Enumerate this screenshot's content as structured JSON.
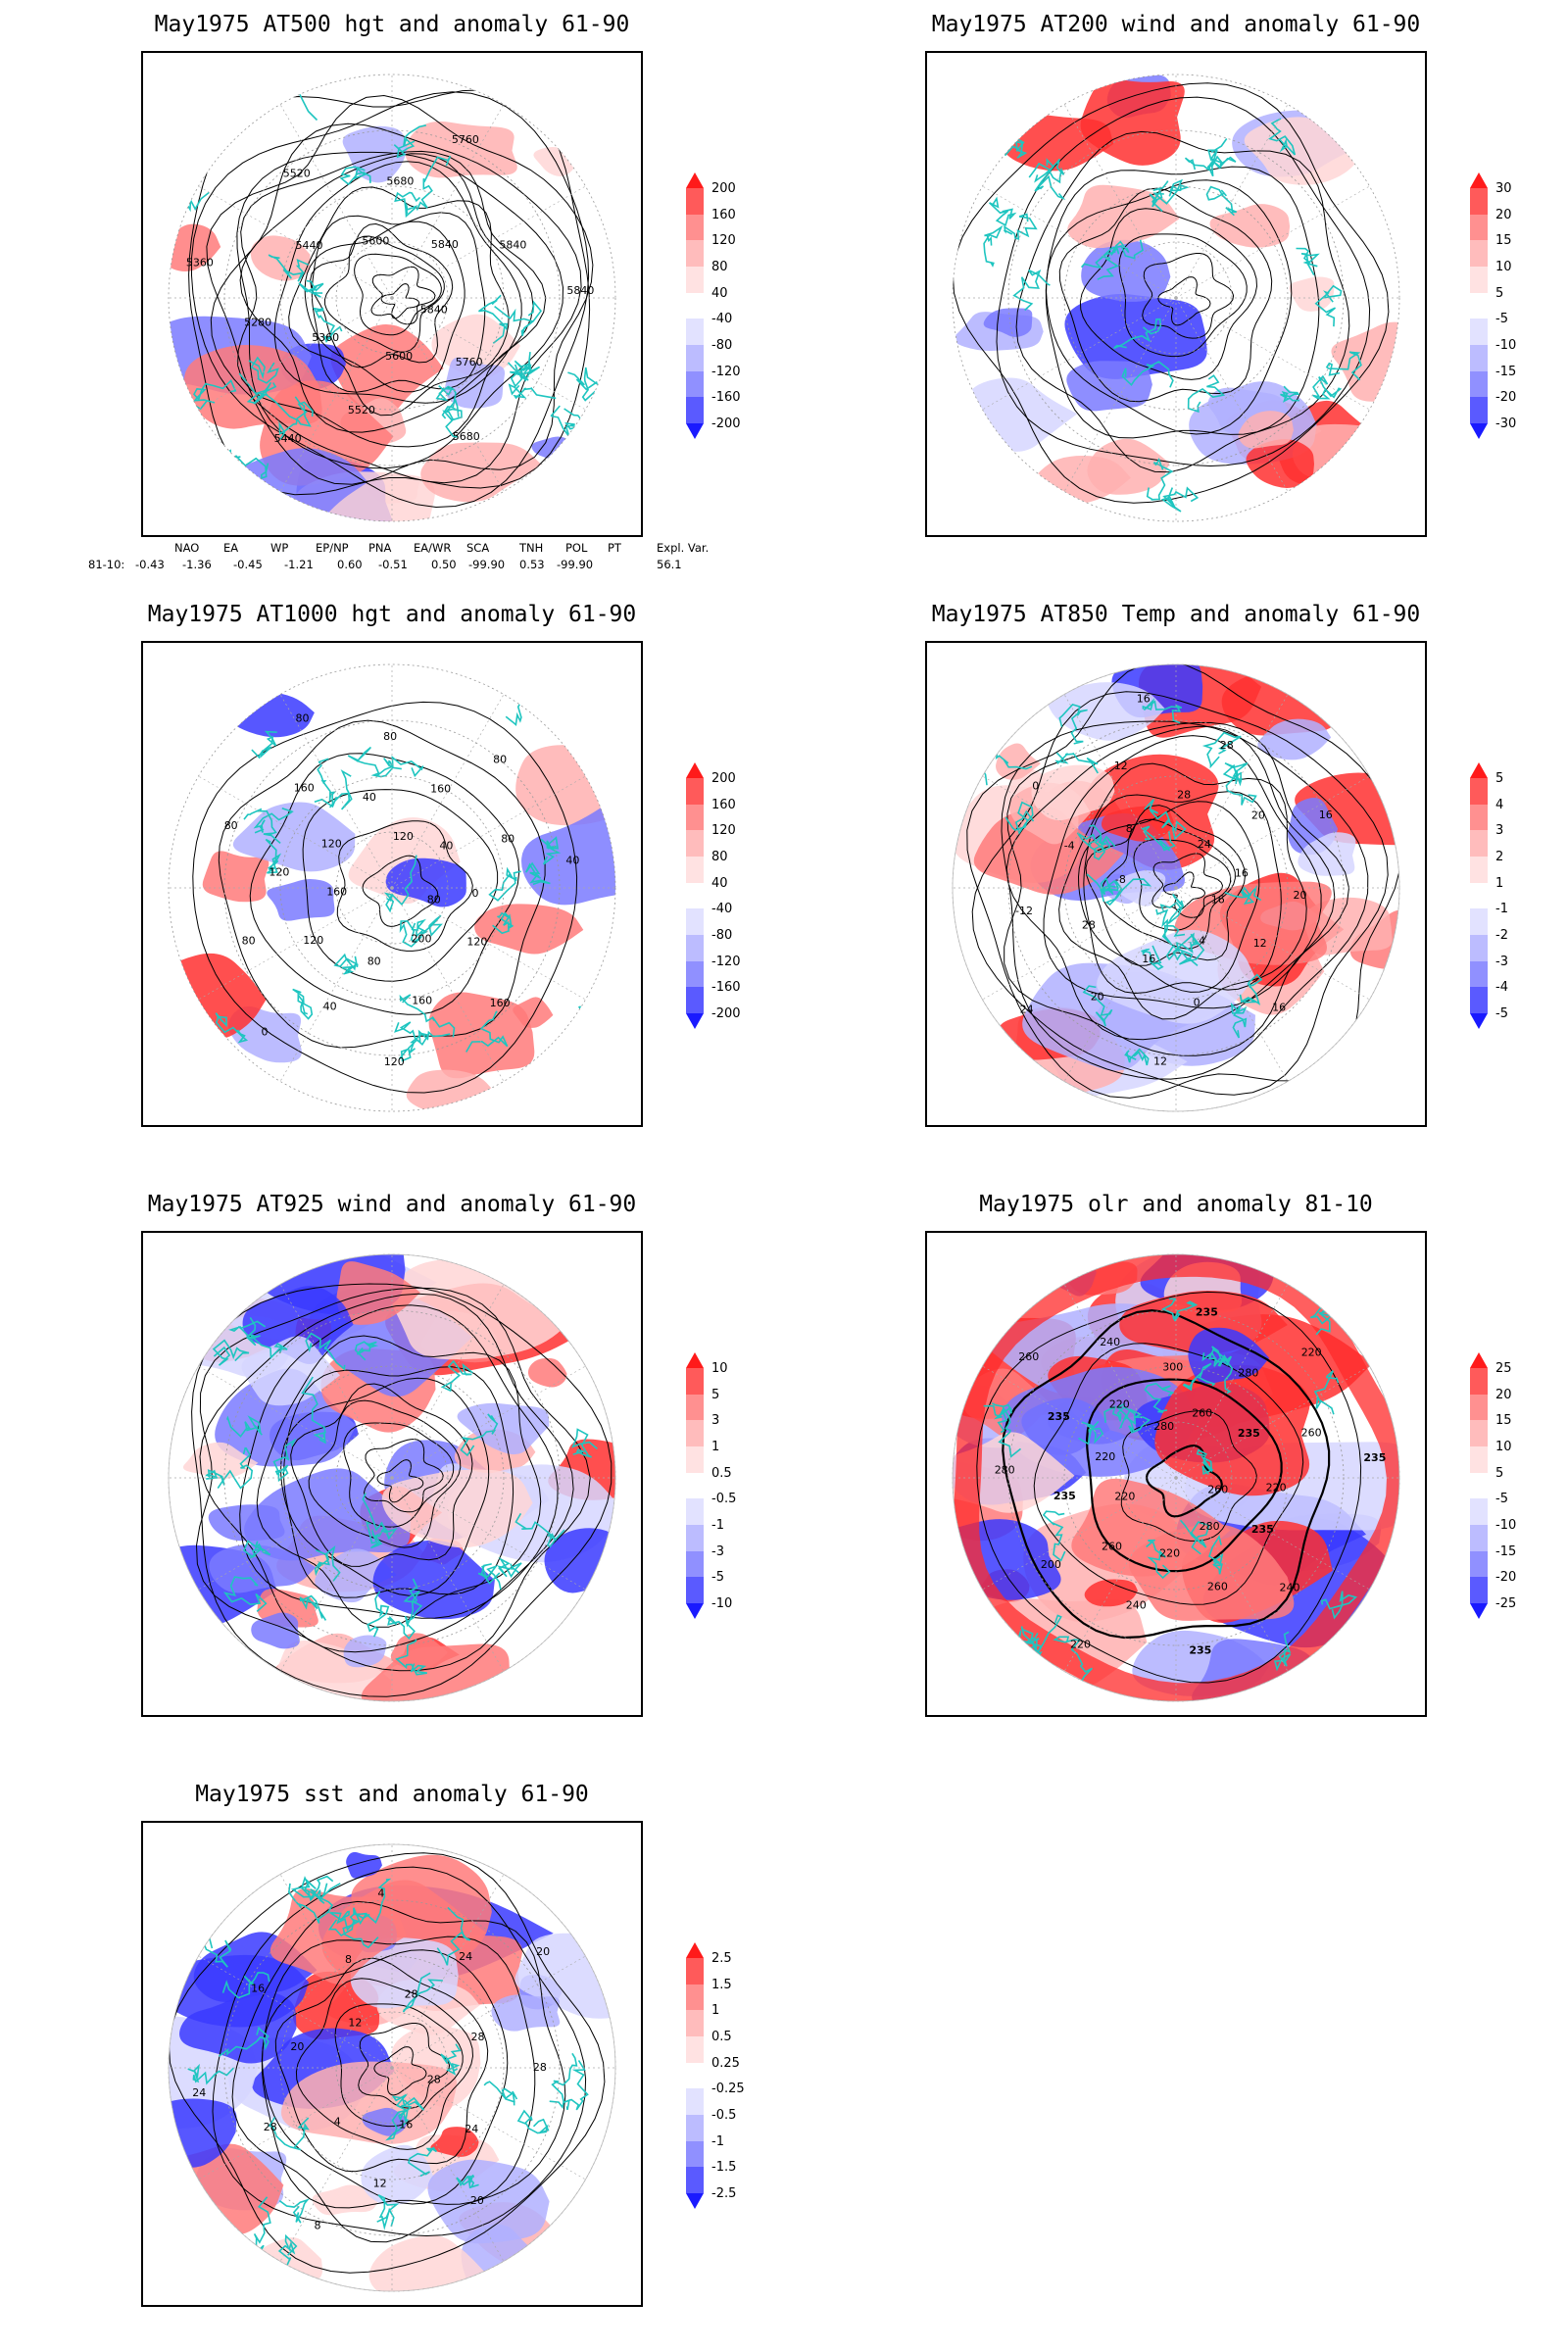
{
  "panels": [
    {
      "id": "p1",
      "title": "May1975 AT500 hgt and anomaly 61-90",
      "cbar": "hgt",
      "contour_labels": [
        "5840",
        "5760",
        "5680",
        "5600",
        "5520",
        "5440",
        "5360",
        "5280",
        "5360",
        "5440",
        "5520",
        "5600",
        "5680",
        "5760",
        "5840",
        "5840",
        "5840"
      ]
    },
    {
      "id": "p2",
      "title": "May1975 AT200 wind and anomaly 61-90",
      "cbar": "wind200",
      "contour_labels": []
    },
    {
      "id": "p3",
      "title": "May1975 AT1000 hgt and anomaly 61-90",
      "cbar": "hgt",
      "contour_labels": [
        "80",
        "120",
        "160",
        "200",
        "160",
        "120",
        "80",
        "40",
        "0",
        "120",
        "80",
        "160",
        "120",
        "80",
        "120",
        "160",
        "80",
        "40",
        "80",
        "120",
        "160",
        "80",
        "40",
        "80",
        "40",
        "0"
      ]
    },
    {
      "id": "p4",
      "title": "May1975 AT850 Temp and anomaly 61-90",
      "cbar": "temp",
      "contour_labels": [
        "16",
        "12",
        "16",
        "4",
        "0",
        "12",
        "16",
        "20",
        "24",
        "28",
        "-12",
        "-8",
        "-4",
        "0",
        "8",
        "12",
        "16",
        "28",
        "28",
        "24",
        "20",
        "16",
        "16",
        "20"
      ]
    },
    {
      "id": "p5",
      "title": "May1975 AT925 wind and anomaly 61-90",
      "cbar": "wind925",
      "contour_labels": []
    },
    {
      "id": "p6",
      "title": "May1975 olr and anomaly 81-10",
      "cbar": "olr",
      "contour_labels": [
        "260",
        "235",
        "240",
        "280",
        "260",
        "235",
        "220",
        "240",
        "220",
        "260",
        "200",
        "220",
        "235",
        "280",
        "220",
        "235",
        "260",
        "220",
        "240",
        "280",
        "300",
        "235",
        "260",
        "280",
        "220",
        "235",
        "260",
        "235",
        "220"
      ]
    },
    {
      "id": "p7",
      "title": "May1975 sst and anomaly 61-90",
      "cbar": "sst",
      "contour_labels": [
        "28",
        "24",
        "20",
        "16",
        "12",
        "8",
        "4",
        "28",
        "24",
        "20",
        "16",
        "12",
        "8",
        "4",
        "28",
        "24",
        "20",
        "28",
        "28"
      ]
    }
  ],
  "colorbars": {
    "hgt": {
      "labels": [
        "200",
        "160",
        "120",
        "80",
        "40",
        "-40",
        "-80",
        "-120",
        "-160",
        "-200"
      ]
    },
    "wind200": {
      "labels": [
        "30",
        "20",
        "15",
        "10",
        "5",
        "-5",
        "-10",
        "-15",
        "-20",
        "-30"
      ]
    },
    "temp": {
      "labels": [
        "5",
        "4",
        "3",
        "2",
        "1",
        "-1",
        "-2",
        "-3",
        "-4",
        "-5"
      ]
    },
    "wind925": {
      "labels": [
        "10",
        "5",
        "3",
        "1",
        "0.5",
        "-0.5",
        "-1",
        "-3",
        "-5",
        "-10"
      ]
    },
    "olr": {
      "labels": [
        "25",
        "20",
        "15",
        "10",
        "5",
        "-5",
        "-10",
        "-15",
        "-20",
        "-25"
      ]
    },
    "sst": {
      "labels": [
        "2.5",
        "1.5",
        "1",
        "0.5",
        "0.25",
        "-0.25",
        "-0.5",
        "-1",
        "-1.5",
        "-2.5"
      ]
    }
  },
  "segment_colors": [
    "#ff1a1a",
    "#ff5a5a",
    "#ff9090",
    "#ffbcbc",
    "#ffe2e2",
    "#ffffff",
    "#e2e2ff",
    "#bcbcff",
    "#9090ff",
    "#5a5aff",
    "#1a1aff"
  ],
  "teleconnection_table": {
    "headers": [
      "NAO",
      "EA",
      "WP",
      "EP/NP",
      "PNA",
      "EA/WR",
      "SCA",
      "TNH",
      "POL",
      "PT",
      "Expl. Var."
    ],
    "row_label": "81-10:",
    "values": [
      "-0.43",
      "-1.36",
      "-0.45",
      "-1.21",
      "0.60",
      "-0.51",
      "0.50",
      "-99.90",
      "0.53",
      "-99.90",
      "56.1"
    ]
  }
}
